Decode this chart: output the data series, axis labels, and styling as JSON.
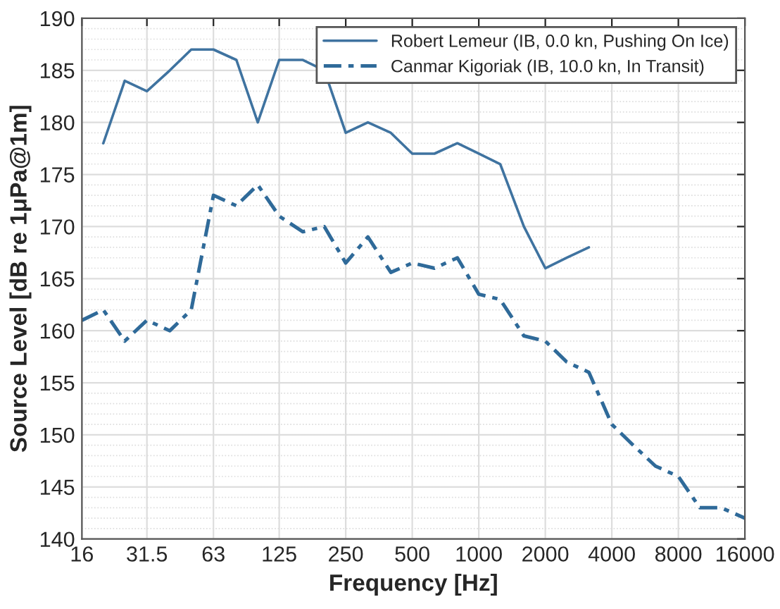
{
  "chart_data": {
    "type": "line",
    "xlabel": "Frequency [Hz]",
    "ylabel": "Source Level [dB re 1μPa@1m]",
    "log": "x",
    "xlim": [
      16,
      16000
    ],
    "xticks": [
      16,
      31.5,
      63,
      125,
      250,
      500,
      1000,
      2000,
      4000,
      8000,
      16000
    ],
    "ylim": [
      140,
      190
    ],
    "yticks": [
      140,
      145,
      150,
      155,
      160,
      165,
      170,
      175,
      180,
      185,
      190
    ],
    "grid": true,
    "legend": "top right",
    "series": [
      {
        "name": "Robert Lemeur (IB, 0.0 kn, Pushing On Ice)",
        "color": "#3f73a0",
        "line_style": "solid",
        "x": [
          20,
          25,
          31.5,
          40,
          50,
          63,
          80,
          100,
          125,
          160,
          200,
          250,
          315,
          400,
          500,
          630,
          800,
          1000,
          1250,
          1600,
          2000,
          2500,
          3150
        ],
        "values": [
          178,
          184,
          183,
          185,
          187,
          187,
          186,
          180,
          186,
          186,
          185,
          179,
          180,
          179,
          177,
          177,
          178,
          177,
          176,
          170,
          166,
          167,
          168
        ]
      },
      {
        "name": "Canmar Kigoriak (IB, 10.0 kn, In Transit)",
        "color": "#2f6a99",
        "line_style": "dashed",
        "x": [
          16,
          20,
          25,
          31.5,
          40,
          50,
          63,
          80,
          100,
          125,
          160,
          200,
          250,
          315,
          400,
          500,
          630,
          800,
          1000,
          1250,
          1600,
          2000,
          2500,
          3150,
          4000,
          5000,
          6300,
          8000,
          10000,
          12500,
          16000
        ],
        "values": [
          161,
          162,
          159,
          161,
          160,
          162,
          173,
          172,
          174,
          171,
          169.5,
          170,
          166.5,
          169,
          165.6,
          166.5,
          166,
          167,
          163.5,
          163,
          159.5,
          159,
          157,
          156,
          151,
          149,
          147,
          146,
          143,
          143,
          142
        ]
      }
    ]
  }
}
